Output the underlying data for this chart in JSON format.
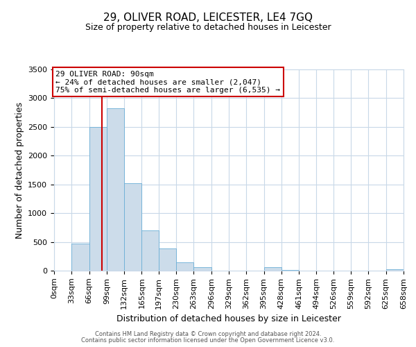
{
  "title": "29, OLIVER ROAD, LEICESTER, LE4 7GQ",
  "subtitle": "Size of property relative to detached houses in Leicester",
  "xlabel": "Distribution of detached houses by size in Leicester",
  "ylabel": "Number of detached properties",
  "bin_labels": [
    "0sqm",
    "33sqm",
    "66sqm",
    "99sqm",
    "132sqm",
    "165sqm",
    "197sqm",
    "230sqm",
    "263sqm",
    "296sqm",
    "329sqm",
    "362sqm",
    "395sqm",
    "428sqm",
    "461sqm",
    "494sqm",
    "526sqm",
    "559sqm",
    "592sqm",
    "625sqm",
    "658sqm"
  ],
  "bin_edges": [
    0,
    33,
    66,
    99,
    132,
    165,
    197,
    230,
    263,
    296,
    329,
    362,
    395,
    428,
    461,
    494,
    526,
    559,
    592,
    625,
    658
  ],
  "bar_heights": [
    5,
    470,
    2500,
    2820,
    1520,
    700,
    390,
    150,
    65,
    0,
    0,
    0,
    55,
    15,
    5,
    0,
    0,
    0,
    0,
    30
  ],
  "bar_color": "#ccdcea",
  "bar_edge_color": "#6aaed6",
  "property_size": 90,
  "vline_color": "#cc0000",
  "annotation_line1": "29 OLIVER ROAD: 90sqm",
  "annotation_line2": "← 24% of detached houses are smaller (2,047)",
  "annotation_line3": "75% of semi-detached houses are larger (6,535) →",
  "annotation_box_color": "#ffffff",
  "annotation_box_edge_color": "#cc0000",
  "ylim": [
    0,
    3500
  ],
  "yticks": [
    0,
    500,
    1000,
    1500,
    2000,
    2500,
    3000,
    3500
  ],
  "footer_line1": "Contains HM Land Registry data © Crown copyright and database right 2024.",
  "footer_line2": "Contains public sector information licensed under the Open Government Licence v3.0.",
  "background_color": "#ffffff",
  "grid_color": "#c8d8e8",
  "title_fontsize": 11,
  "subtitle_fontsize": 9,
  "axis_label_fontsize": 9,
  "tick_fontsize": 8,
  "annotation_fontsize": 8,
  "footer_fontsize": 6
}
